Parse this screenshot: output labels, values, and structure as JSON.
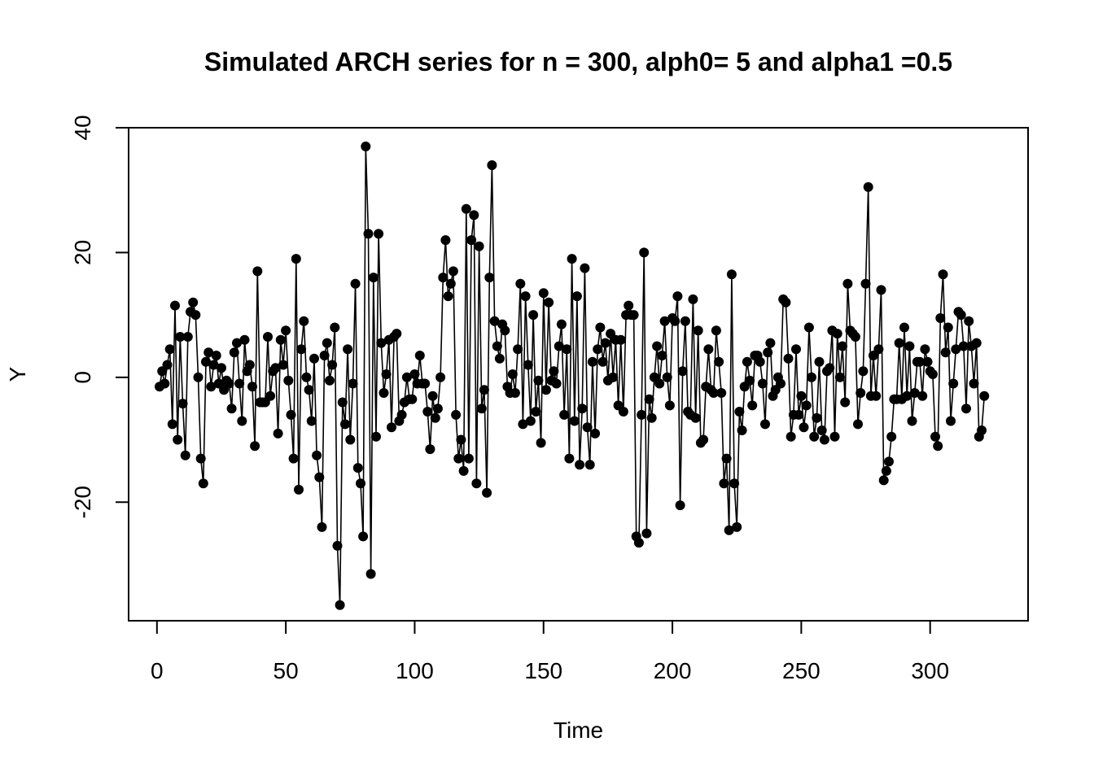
{
  "chart_data": {
    "type": "line",
    "title": "Simulated ARCH series for n = 300, alph0= 5 and alpha1 =0.5",
    "xlabel": "Time",
    "ylabel": "Y",
    "xlim": [
      -11,
      338
    ],
    "ylim": [
      -39,
      40
    ],
    "x_ticks": [
      0,
      50,
      100,
      150,
      200,
      250,
      300
    ],
    "y_ticks": [
      -20,
      0,
      20,
      40
    ],
    "grid": false,
    "markers": "filled-circle",
    "line_color": "#000000",
    "series": [
      {
        "values": [
          -1.5,
          1,
          -1,
          2,
          4.5,
          -7.5,
          11.5,
          -10,
          6.5,
          -4.2,
          -12.5,
          6.5,
          10.5,
          12,
          10,
          0,
          -13,
          -17,
          2.5,
          4,
          -1.5,
          2,
          3.5,
          -1,
          1.5,
          -2,
          -0.5,
          -1,
          -5,
          4,
          5.5,
          -1,
          -7,
          6,
          1,
          2,
          -1.5,
          -11,
          17,
          -4,
          -4,
          -4,
          6.5,
          -3,
          1,
          1.5,
          -9,
          6,
          2,
          7.5,
          -0.5,
          -6,
          -13,
          19,
          -18,
          4.5,
          9,
          0,
          -2,
          -7,
          3,
          -12.5,
          -16,
          -24,
          3.5,
          5.5,
          -0.5,
          2,
          8,
          -27,
          -36.5,
          -4,
          -7.5,
          4.5,
          -10,
          -1,
          15,
          -14.5,
          -17,
          -25.5,
          37,
          23,
          -31.5,
          16,
          -9.5,
          23,
          5.5,
          -2.5,
          0.5,
          6,
          -8,
          6.5,
          7,
          -7,
          -6,
          -4,
          0,
          -3.5,
          -3.5,
          0.5,
          -1,
          3.5,
          -1,
          -1,
          -5.5,
          -11.5,
          -3,
          -6.5,
          -5,
          0,
          16,
          22,
          13,
          15,
          17,
          -6,
          -13,
          -10,
          -15,
          27,
          -13,
          22,
          26,
          -17,
          21,
          -5,
          -2,
          -18.5,
          16,
          34,
          9,
          5,
          3,
          8.5,
          7.5,
          -1.5,
          -2.5,
          0.5,
          -2.5,
          4.5,
          15,
          -7.5,
          13,
          2,
          -7,
          10,
          -5.5,
          -0.5,
          -10.5,
          13.5,
          -2,
          12,
          -0.5,
          1,
          -1,
          5,
          8.5,
          -6,
          4.5,
          -13,
          19,
          -7,
          13,
          -14,
          -5,
          17.5,
          -8,
          -14,
          2.5,
          -9,
          4.5,
          8,
          2.5,
          5.5,
          -0.5,
          7,
          0,
          6,
          -4.5,
          6,
          -5.5,
          10,
          11.5,
          10,
          10,
          -25.5,
          -26.5,
          -6,
          20,
          -25,
          -3.5,
          -6.5,
          0,
          5,
          -1,
          3.5,
          9,
          0,
          -4.5,
          9.5,
          9,
          13,
          -20.5,
          1,
          9,
          -5.5,
          -6,
          12.5,
          -6.5,
          7.5,
          -10.5,
          -10,
          -1.5,
          4.5,
          -2,
          -2.5,
          7.5,
          2.5,
          -2.5,
          -17,
          -13,
          -24.5,
          16.5,
          -17,
          -24,
          -5.5,
          -8.5,
          -1.5,
          2.5,
          -0.5,
          -4.5,
          3.5,
          3.5,
          2.5,
          -1,
          -7.5,
          4,
          5.5,
          -3,
          -2,
          0,
          -1,
          12.5,
          12,
          3,
          -9.5,
          -6,
          4.5,
          -6,
          -3,
          -8,
          -4.5,
          8,
          0,
          -9.5,
          -6.5,
          2.5,
          -8.5,
          -10,
          1,
          1.5,
          7.5,
          -9.5,
          7,
          0,
          5,
          -4,
          15,
          7.5,
          7,
          6.5,
          -7.5,
          -2.5,
          1,
          15,
          30.5,
          -3,
          3.5,
          -3,
          4.5,
          14,
          -16.5,
          -15,
          -13.5,
          -9.5,
          -3.5,
          -3.5,
          5.5,
          -3.5,
          8,
          -3,
          5,
          -7,
          -2.5,
          2.5,
          2.5,
          -3,
          4.5,
          2.5,
          1,
          0.5,
          -9.5,
          -11,
          9.5,
          16.5,
          4,
          8,
          -7,
          -1,
          4.5,
          10.5,
          10,
          5,
          -5,
          9,
          5,
          -1,
          5.5,
          -9.5,
          -8.5,
          -3
        ]
      }
    ]
  }
}
